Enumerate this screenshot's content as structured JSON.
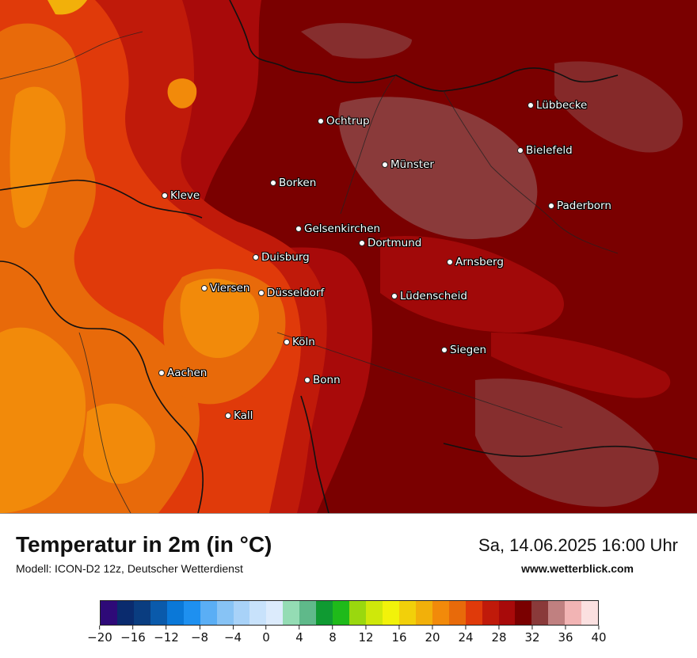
{
  "map": {
    "cities": [
      {
        "name": "Lübbecke"
      },
      {
        "name": "Ochtrup"
      },
      {
        "name": "Bielefeld"
      },
      {
        "name": "Münster"
      },
      {
        "name": "Borken"
      },
      {
        "name": "Kleve"
      },
      {
        "name": "Paderborn"
      },
      {
        "name": "Gelsenkirchen"
      },
      {
        "name": "Dortmund"
      },
      {
        "name": "Duisburg"
      },
      {
        "name": "Arnsberg"
      },
      {
        "name": "Viersen"
      },
      {
        "name": "Düsseldorf"
      },
      {
        "name": "Lüdenscheid"
      },
      {
        "name": "Köln"
      },
      {
        "name": "Siegen"
      },
      {
        "name": "Aachen"
      },
      {
        "name": "Bonn"
      },
      {
        "name": "Kall"
      }
    ]
  },
  "footer": {
    "title": "Temperatur in 2m (in °C)",
    "subtitle": "Modell: ICON-D2 12z, Deutscher Wetterdienst",
    "datetime": "Sa, 14.06.2025 16:00 Uhr",
    "website": "www.wetterblick.com"
  },
  "legend": {
    "colors": [
      "#2e0a78",
      "#0a2b6e",
      "#0a3d80",
      "#0a5aab",
      "#0a78d8",
      "#1e90f0",
      "#5aaef5",
      "#87c3f5",
      "#a8d2f8",
      "#c8e2fb",
      "#dcebfc",
      "#94dcb4",
      "#5fb98a",
      "#0f9a32",
      "#1fba1a",
      "#9ad80e",
      "#cfe80a",
      "#f2f20a",
      "#f2d00a",
      "#f2b00a",
      "#f28a0a",
      "#e86a0a",
      "#e03a0a",
      "#c01a0a",
      "#a80a0a",
      "#7a0000",
      "#8a3a3a",
      "#c08080",
      "#f2b4b4",
      "#fbe0e0"
    ],
    "tick_labels": [
      "−20",
      "−16",
      "−12",
      "−8",
      "−4",
      "0",
      "4",
      "8",
      "12",
      "16",
      "20",
      "24",
      "28",
      "32",
      "36",
      "40"
    ]
  }
}
